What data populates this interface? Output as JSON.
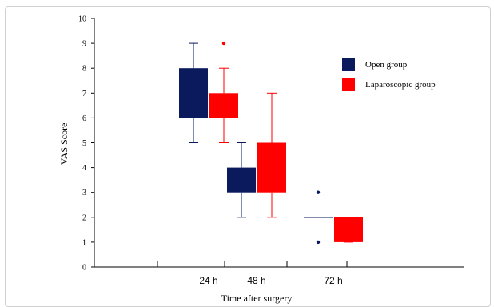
{
  "chart_data": {
    "type": "boxplot",
    "title": "",
    "xlabel": "Time after surgery",
    "ylabel": "VAS Score",
    "ylim": [
      0,
      10
    ],
    "yticks": [
      0,
      1,
      2,
      3,
      4,
      5,
      6,
      7,
      8,
      9,
      10
    ],
    "categories": [
      "24 h",
      "48 h",
      "72 h"
    ],
    "legend_position": "top-right",
    "series": [
      {
        "name": "Open group",
        "color": "#0a1a5c",
        "boxes": [
          {
            "category": "24 h",
            "whisker_low": 5,
            "q1": 6,
            "median": 6,
            "q3": 8,
            "whisker_high": 9,
            "outliers": []
          },
          {
            "category": "48 h",
            "whisker_low": 2,
            "q1": 3,
            "median": 3,
            "q3": 4,
            "whisker_high": 5,
            "outliers": []
          },
          {
            "category": "72 h",
            "whisker_low": 2,
            "q1": 2,
            "median": 2,
            "q3": 2,
            "whisker_high": 2,
            "outliers": [
              3,
              1
            ]
          }
        ]
      },
      {
        "name": "Laparoscopic group",
        "color": "#ff0000",
        "boxes": [
          {
            "category": "24 h",
            "whisker_low": 5,
            "q1": 6,
            "median": 6,
            "q3": 7,
            "whisker_high": 8,
            "outliers": [
              9
            ]
          },
          {
            "category": "48 h",
            "whisker_low": 2,
            "q1": 3,
            "median": 3,
            "q3": 5,
            "whisker_high": 7,
            "outliers": []
          },
          {
            "category": "72 h",
            "whisker_low": 1,
            "q1": 1,
            "median": 1,
            "q3": 2,
            "whisker_high": 2,
            "outliers": []
          }
        ]
      }
    ]
  }
}
